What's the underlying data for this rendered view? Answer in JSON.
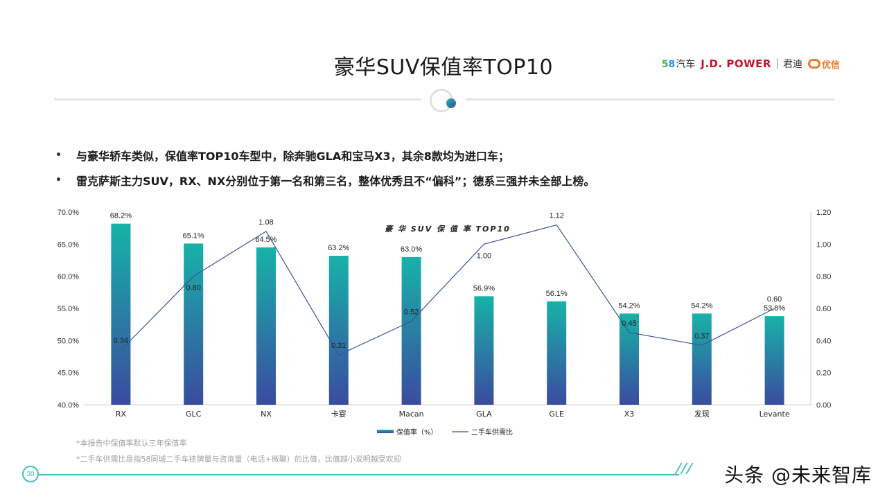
{
  "title": "豪华SUV保值率TOP10",
  "logos": {
    "l58_a": "5",
    "l58_b": "8",
    "l58_c": "汽车",
    "jd": "J.D. POWER",
    "jd_cn": "君迪",
    "yx": "优信"
  },
  "bullets": [
    "与豪华轿车类似，保值率TOP10车型中，除奔驰GLA和宝马X3，其余8款均为进口车；",
    "雷克萨斯主力SUV，RX、NX分别位于第一名和第三名，整体优秀且不“偏科”；德系三强并未全部上榜。"
  ],
  "bullet_symbol": "•",
  "chart_data": {
    "type": "bar",
    "title": "豪 华 SUV 保 值 率 TOP10",
    "categories": [
      "RX",
      "GLC",
      "NX",
      "卡宴",
      "Macan",
      "GLA",
      "GLE",
      "X3",
      "发现",
      "Levante"
    ],
    "series": [
      {
        "name": "保值率（%）",
        "type": "bar",
        "axis": "left",
        "values": [
          68.2,
          65.1,
          64.5,
          63.2,
          63.0,
          56.9,
          56.1,
          54.2,
          54.2,
          53.8
        ],
        "labels": [
          "68.2%",
          "65.1%",
          "64.5%",
          "63.2%",
          "63.0%",
          "56.9%",
          "56.1%",
          "54.2%",
          "54.2%",
          "53.8%"
        ]
      },
      {
        "name": "二手车供需比",
        "type": "line",
        "axis": "right",
        "values": [
          0.34,
          0.8,
          1.08,
          0.31,
          0.52,
          1.0,
          1.12,
          0.45,
          0.37,
          0.6
        ],
        "labels": [
          "0.34",
          "0.80",
          "1.08",
          "0.31",
          "0.52",
          "1.00",
          "1.12",
          "0.45",
          "0.37",
          "0.60"
        ]
      }
    ],
    "y_left": {
      "min": 40,
      "max": 70,
      "ticks": [
        40,
        45,
        50,
        55,
        60,
        65,
        70
      ],
      "tick_labels": [
        "40.0%",
        "45.0%",
        "50.0%",
        "55.0%",
        "60.0%",
        "65.0%",
        "70.0%"
      ]
    },
    "y_right": {
      "min": 0,
      "max": 1.2,
      "ticks": [
        0,
        0.2,
        0.4,
        0.6,
        0.8,
        1.0,
        1.2
      ],
      "tick_labels": [
        "0.00",
        "0.20",
        "0.40",
        "0.60",
        "0.80",
        "1.00",
        "1.20"
      ]
    },
    "legend_position": "bottom",
    "grid": false,
    "colors": {
      "bar_top": "#17b2a8",
      "bar_bottom": "#3b4ba0",
      "line": "#3f4f96"
    }
  },
  "notes": [
    "*本报告中保值率默认三年保值率",
    "*二手车供需比是指58同城二手车挂牌量与咨询量（电话+微聊）的比值，比值越小说明越受欢迎"
  ],
  "page_number": "30",
  "watermark": "头条 @未来智库"
}
